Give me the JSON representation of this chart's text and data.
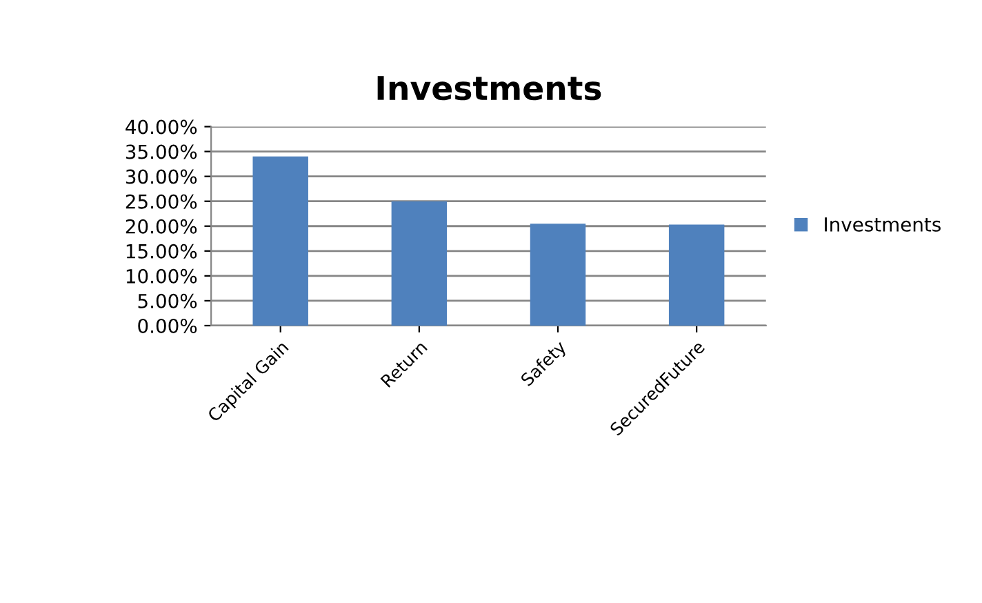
{
  "chart_data": {
    "type": "bar",
    "title": "Investments",
    "categories": [
      "Capital Gain",
      "Return",
      "Safety",
      "SecuredFuture"
    ],
    "series": [
      {
        "name": "Investments",
        "color": "#4f81bd",
        "values": [
          34,
          25,
          20.5,
          20.3
        ]
      }
    ],
    "ylim": [
      0,
      40
    ],
    "yticks": [
      {
        "value": 0,
        "label": "0.00%"
      },
      {
        "value": 5,
        "label": "5.00%"
      },
      {
        "value": 10,
        "label": "10.00%"
      },
      {
        "value": 15,
        "label": "15.00%"
      },
      {
        "value": 20,
        "label": "20.00%"
      },
      {
        "value": 25,
        "label": "25.00%"
      },
      {
        "value": 30,
        "label": "30.00%"
      },
      {
        "value": 35,
        "label": "35.00%"
      },
      {
        "value": 40,
        "label": "40.00%"
      }
    ],
    "grid": "y",
    "legend": "right"
  }
}
